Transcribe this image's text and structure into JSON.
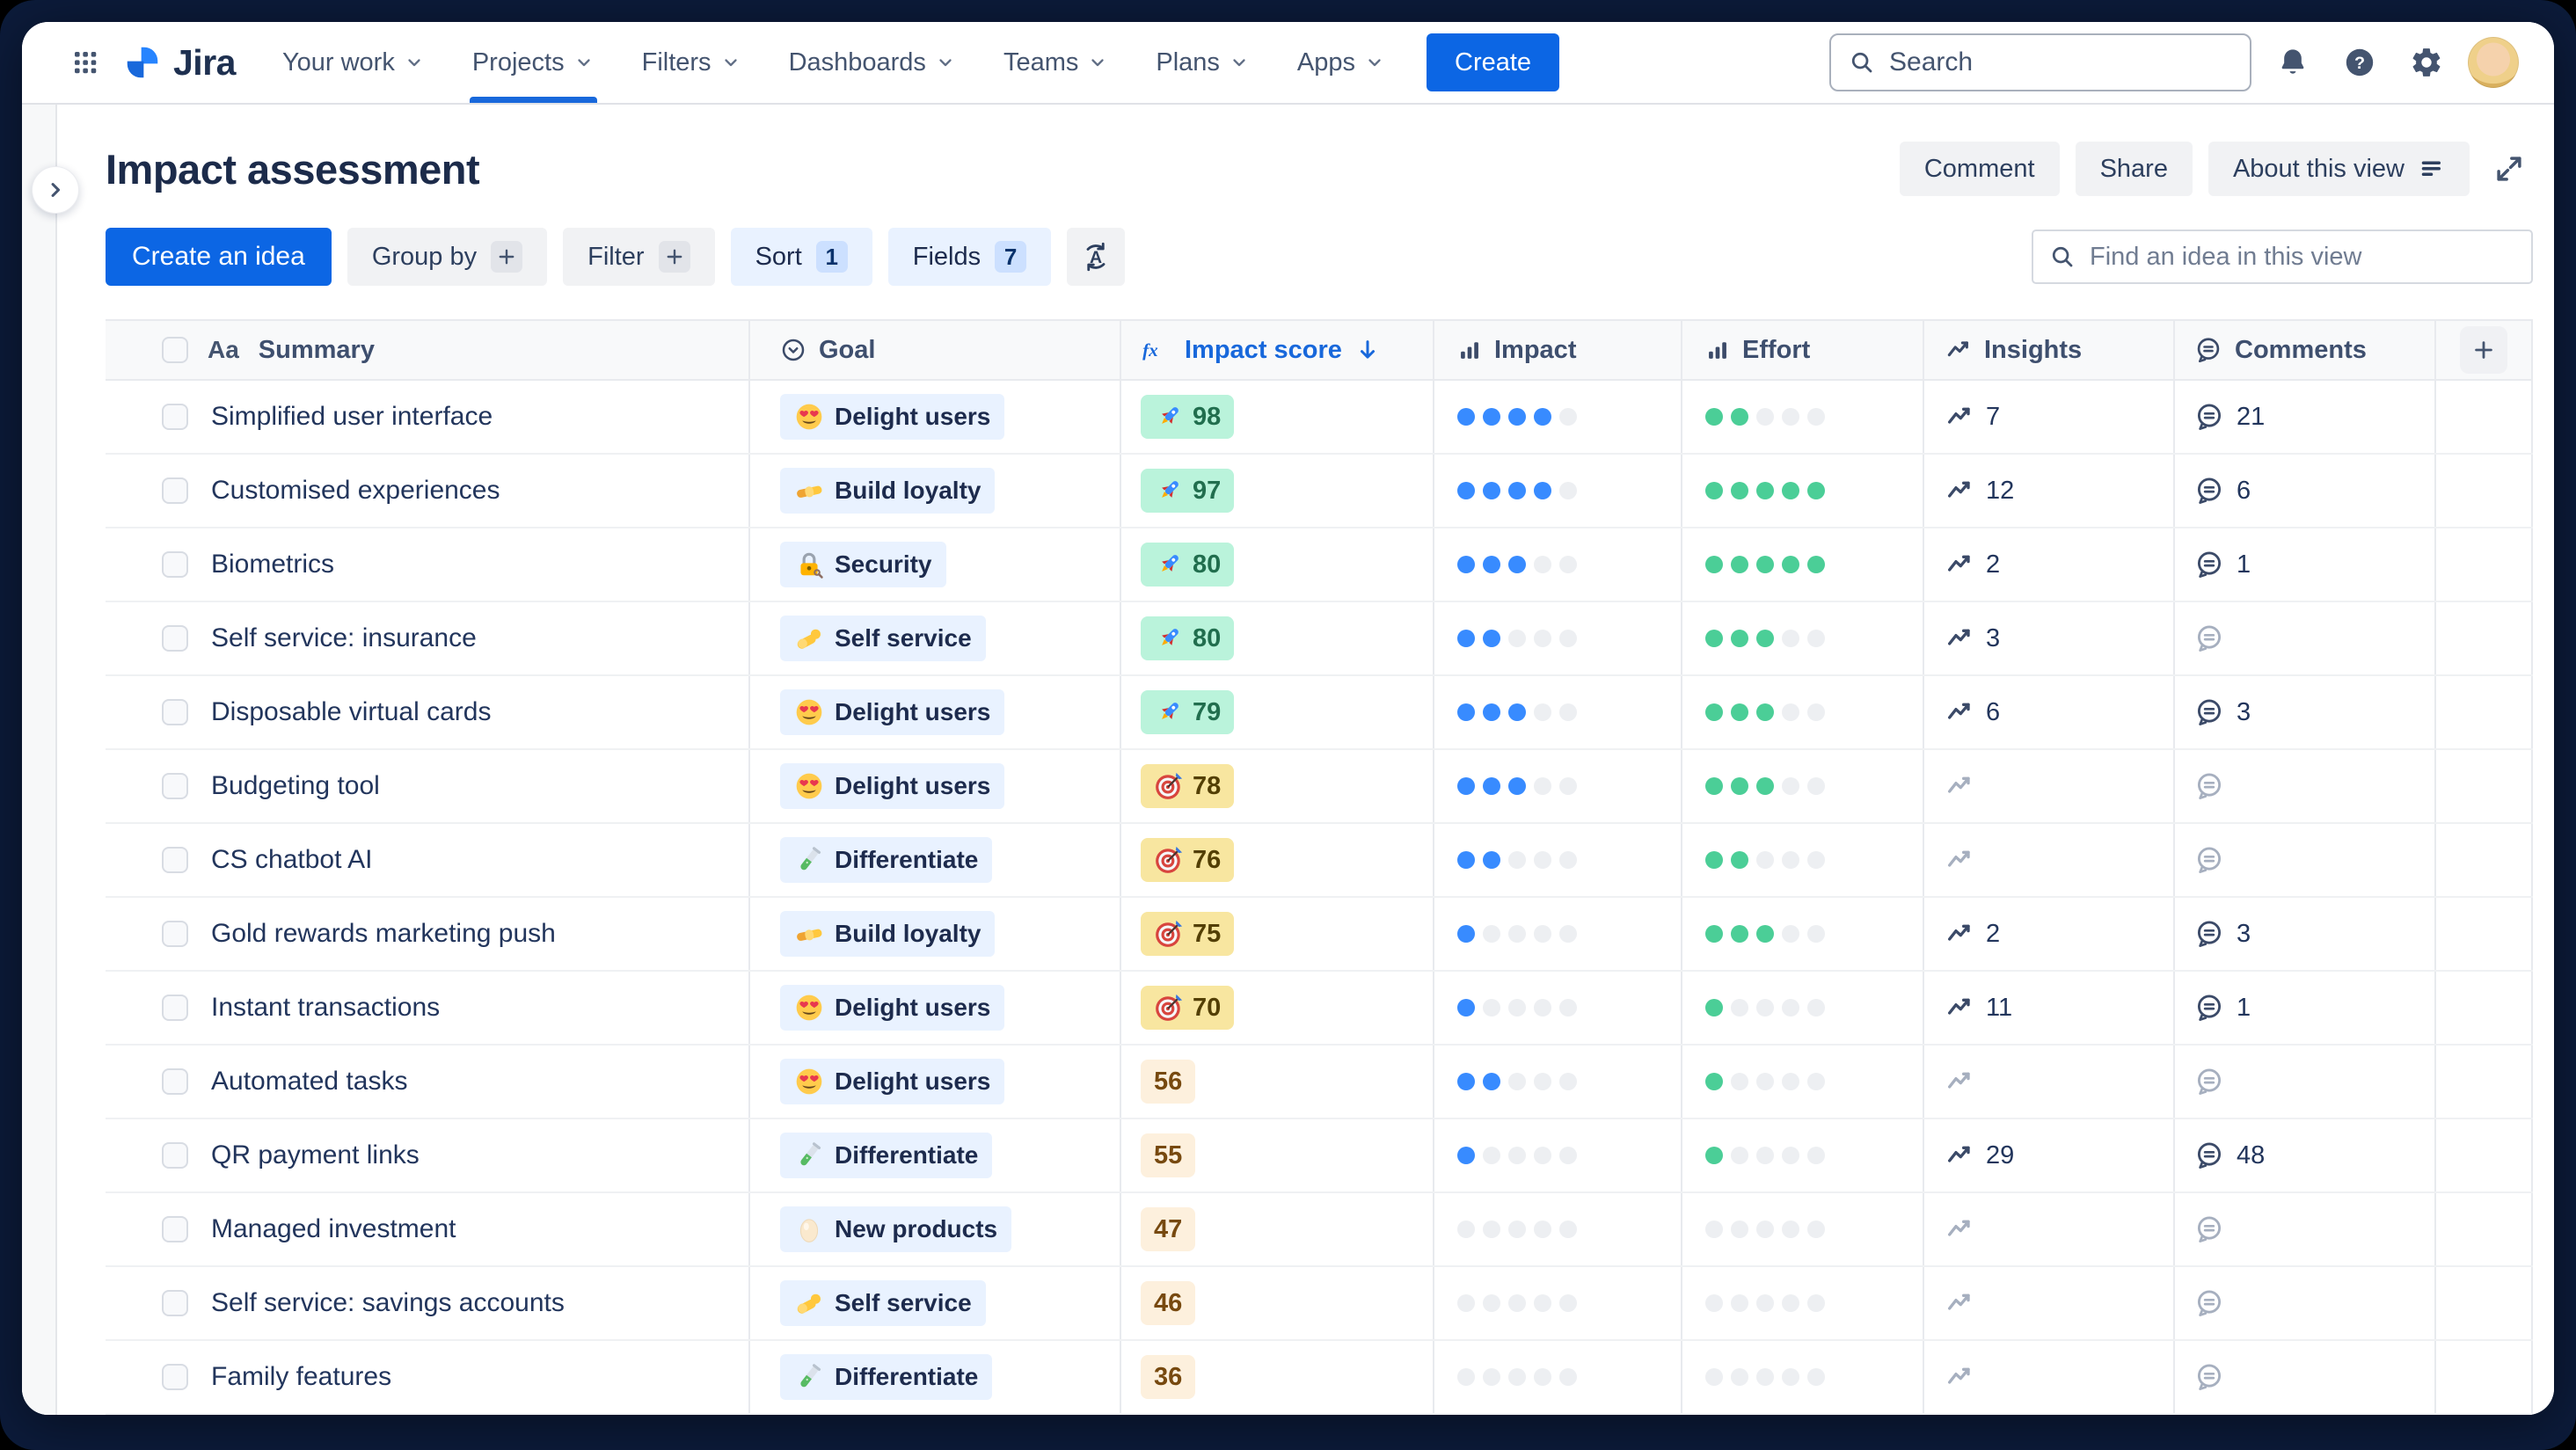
{
  "nav": {
    "logo_text": "Jira",
    "items": [
      {
        "label": "Your work",
        "active": false
      },
      {
        "label": "Projects",
        "active": true
      },
      {
        "label": "Filters",
        "active": false
      },
      {
        "label": "Dashboards",
        "active": false
      },
      {
        "label": "Teams",
        "active": false
      },
      {
        "label": "Plans",
        "active": false
      },
      {
        "label": "Apps",
        "active": false
      }
    ],
    "create_label": "Create",
    "search_placeholder": "Search"
  },
  "page": {
    "title": "Impact assessment",
    "comment_label": "Comment",
    "share_label": "Share",
    "about_label": "About this view"
  },
  "toolbar": {
    "create_idea_label": "Create an idea",
    "group_by_label": "Group by",
    "filter_label": "Filter",
    "sort_label": "Sort",
    "sort_count": "1",
    "fields_label": "Fields",
    "fields_count": "7",
    "find_placeholder": "Find an idea in this view"
  },
  "table": {
    "columns": [
      {
        "label": "Summary",
        "icon": "text-style-icon"
      },
      {
        "label": "Goal",
        "icon": "status-circle-icon"
      },
      {
        "label": "Impact score",
        "icon": "formula-icon",
        "sorted": "desc"
      },
      {
        "label": "Impact",
        "icon": "bar-chart-icon"
      },
      {
        "label": "Effort",
        "icon": "bar-chart-icon"
      },
      {
        "label": "Insights",
        "icon": "trend-icon"
      },
      {
        "label": "Comments",
        "icon": "comment-icon"
      }
    ],
    "rows": [
      {
        "summary": "Simplified user interface",
        "goal": {
          "label": "Delight users",
          "icon": "heart-eyes-emoji"
        },
        "score": {
          "value": 98,
          "tier": "green",
          "icon": "rocket-emoji"
        },
        "impact": 4,
        "effort": 2,
        "insights": 7,
        "comments": 21
      },
      {
        "summary": "Customised experiences",
        "goal": {
          "label": "Build loyalty",
          "icon": "handshake-emoji"
        },
        "score": {
          "value": 97,
          "tier": "green",
          "icon": "rocket-emoji"
        },
        "impact": 4,
        "effort": 5,
        "insights": 12,
        "comments": 6
      },
      {
        "summary": "Biometrics",
        "goal": {
          "label": "Security",
          "icon": "lock-key-emoji"
        },
        "score": {
          "value": 80,
          "tier": "green",
          "icon": "rocket-emoji"
        },
        "impact": 3,
        "effort": 5,
        "insights": 2,
        "comments": 1
      },
      {
        "summary": "Self service: insurance",
        "goal": {
          "label": "Self service",
          "icon": "flex-arm-emoji"
        },
        "score": {
          "value": 80,
          "tier": "green",
          "icon": "rocket-emoji"
        },
        "impact": 2,
        "effort": 3,
        "insights": 3,
        "comments": null
      },
      {
        "summary": "Disposable virtual cards",
        "goal": {
          "label": "Delight users",
          "icon": "heart-eyes-emoji"
        },
        "score": {
          "value": 79,
          "tier": "green",
          "icon": "rocket-emoji"
        },
        "impact": 3,
        "effort": 3,
        "insights": 6,
        "comments": 3
      },
      {
        "summary": "Budgeting tool",
        "goal": {
          "label": "Delight users",
          "icon": "heart-eyes-emoji"
        },
        "score": {
          "value": 78,
          "tier": "yellow",
          "icon": "target-emoji"
        },
        "impact": 3,
        "effort": 3,
        "insights": null,
        "comments": null
      },
      {
        "summary": "CS chatbot AI",
        "goal": {
          "label": "Differentiate",
          "icon": "test-tube-emoji"
        },
        "score": {
          "value": 76,
          "tier": "yellow",
          "icon": "target-emoji"
        },
        "impact": 2,
        "effort": 2,
        "insights": null,
        "comments": null
      },
      {
        "summary": "Gold rewards marketing push",
        "goal": {
          "label": "Build loyalty",
          "icon": "handshake-emoji"
        },
        "score": {
          "value": 75,
          "tier": "yellow",
          "icon": "target-emoji"
        },
        "impact": 1,
        "effort": 3,
        "insights": 2,
        "comments": 3
      },
      {
        "summary": "Instant transactions",
        "goal": {
          "label": "Delight users",
          "icon": "heart-eyes-emoji"
        },
        "score": {
          "value": 70,
          "tier": "yellow",
          "icon": "target-emoji"
        },
        "impact": 1,
        "effort": 1,
        "insights": 11,
        "comments": 1
      },
      {
        "summary": "Automated tasks",
        "goal": {
          "label": "Delight users",
          "icon": "heart-eyes-emoji"
        },
        "score": {
          "value": 56,
          "tier": "cream",
          "icon": null
        },
        "impact": 2,
        "effort": 1,
        "insights": null,
        "comments": null
      },
      {
        "summary": "QR payment links",
        "goal": {
          "label": "Differentiate",
          "icon": "test-tube-emoji"
        },
        "score": {
          "value": 55,
          "tier": "cream",
          "icon": null
        },
        "impact": 1,
        "effort": 1,
        "insights": 29,
        "comments": 48
      },
      {
        "summary": "Managed investment",
        "goal": {
          "label": "New products",
          "icon": "egg-emoji"
        },
        "score": {
          "value": 47,
          "tier": "cream",
          "icon": null
        },
        "impact": 0,
        "effort": 0,
        "insights": null,
        "comments": null
      },
      {
        "summary": "Self service: savings accounts",
        "goal": {
          "label": "Self service",
          "icon": "flex-arm-emoji"
        },
        "score": {
          "value": 46,
          "tier": "cream",
          "icon": null
        },
        "impact": 0,
        "effort": 0,
        "insights": null,
        "comments": null
      },
      {
        "summary": "Family features",
        "goal": {
          "label": "Differentiate",
          "icon": "test-tube-emoji"
        },
        "score": {
          "value": 36,
          "tier": "cream",
          "icon": null
        },
        "impact": 0,
        "effort": 0,
        "insights": null,
        "comments": null
      }
    ]
  },
  "colors": {
    "accent_blue": "#0C66E4",
    "active_tab_underline": "#1868DB",
    "impact_dot": "#388BFF",
    "effort_dot": "#4BCE97",
    "empty_dot": "#EDEFF2",
    "score_green_bg": "#BAF3DB",
    "score_yellow_bg": "#F8E6A0",
    "score_cream_bg": "#FDF0DD",
    "goal_pill_bg": "#E9F2FF",
    "frame_background": "#0C1B3A"
  }
}
